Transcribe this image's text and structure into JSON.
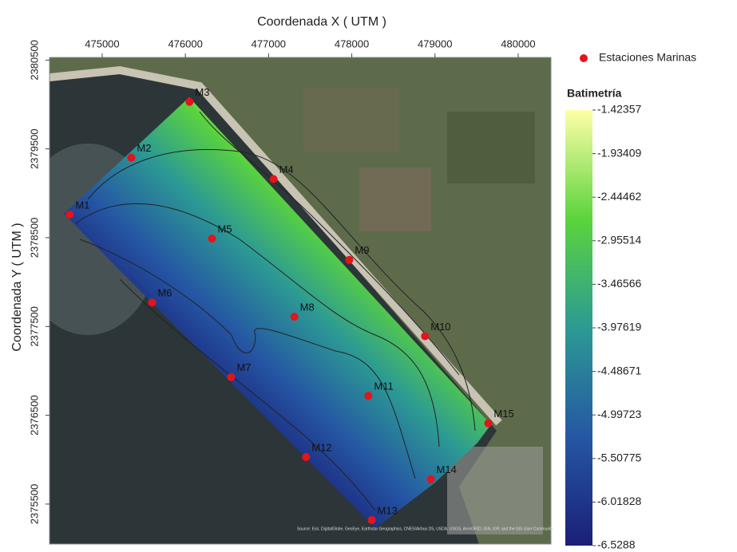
{
  "chart_data": {
    "type": "scatter",
    "x_label": "Coordenada X ( UTM )",
    "y_label": "Coordenada Y ( UTM )",
    "xlim": [
      474367,
      480394
    ],
    "ylim": [
      2375050,
      2380530
    ],
    "xticks": [
      475000,
      476000,
      477000,
      478000,
      479000,
      480000
    ],
    "yticks": [
      2375500,
      2376500,
      2377500,
      2378500,
      2379500,
      2380500
    ],
    "series": [
      {
        "name": "Estaciones Marinas",
        "color": "#e3141b",
        "labels": [
          "M1",
          "M2",
          "M3",
          "M4",
          "M5",
          "M6",
          "M7",
          "M8",
          "M9",
          "M10",
          "M11",
          "M12",
          "M13",
          "M14",
          "M15"
        ],
        "x": [
          474610,
          475350,
          476050,
          477060,
          476320,
          475600,
          476550,
          477310,
          477970,
          478880,
          478200,
          477450,
          478240,
          478950,
          479640
        ],
        "values": [
          2378760,
          2379400,
          2380030,
          2379160,
          2378490,
          2377770,
          2376930,
          2377610,
          2378250,
          2377390,
          2376720,
          2376030,
          2375320,
          2375780,
          2376410
        ]
      }
    ],
    "legend": "top-right",
    "colorbar": {
      "title": "Batimetría",
      "clim": [
        -6.5288,
        -1.42357
      ],
      "ticks": [
        -1.42357,
        -1.93409,
        -2.44462,
        -2.95514,
        -3.46566,
        -3.97619,
        -4.48671,
        -4.99723,
        -5.50775,
        -6.01828,
        -6.5288
      ],
      "colormap": [
        "#1b1f77",
        "#2557a4",
        "#2c9a93",
        "#5bd43c",
        "#ffffa8"
      ]
    },
    "attribution": "Source: Esri, DigitalGlobe, GeoEye, Earthstar Geographics, CNES/Airbus DS, USDA, USGS, AeroGRID, IGN, IGP, and the GIS User Community"
  }
}
